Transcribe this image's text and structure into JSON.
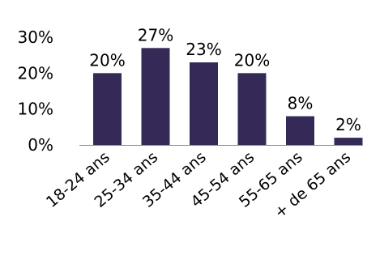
{
  "chart_data": {
    "type": "bar",
    "categories": [
      "18-24 ans",
      "25-34 ans",
      "35-44 ans",
      "45-54 ans",
      "55-65 ans",
      "+ de 65 ans"
    ],
    "values": [
      20,
      27,
      23,
      20,
      8,
      2
    ],
    "data_labels": [
      "20%",
      "27%",
      "23%",
      "20%",
      "8%",
      "2%"
    ],
    "ylim": [
      0,
      30
    ],
    "yticks": [
      0,
      10,
      20,
      30
    ],
    "ytick_labels": [
      "0%",
      "10%",
      "20%",
      "30%"
    ],
    "title": "",
    "xlabel": "",
    "ylabel": "",
    "grid": false,
    "legend": "none",
    "bar_color": "#352a57",
    "axis_color": "#8a8a8a"
  }
}
